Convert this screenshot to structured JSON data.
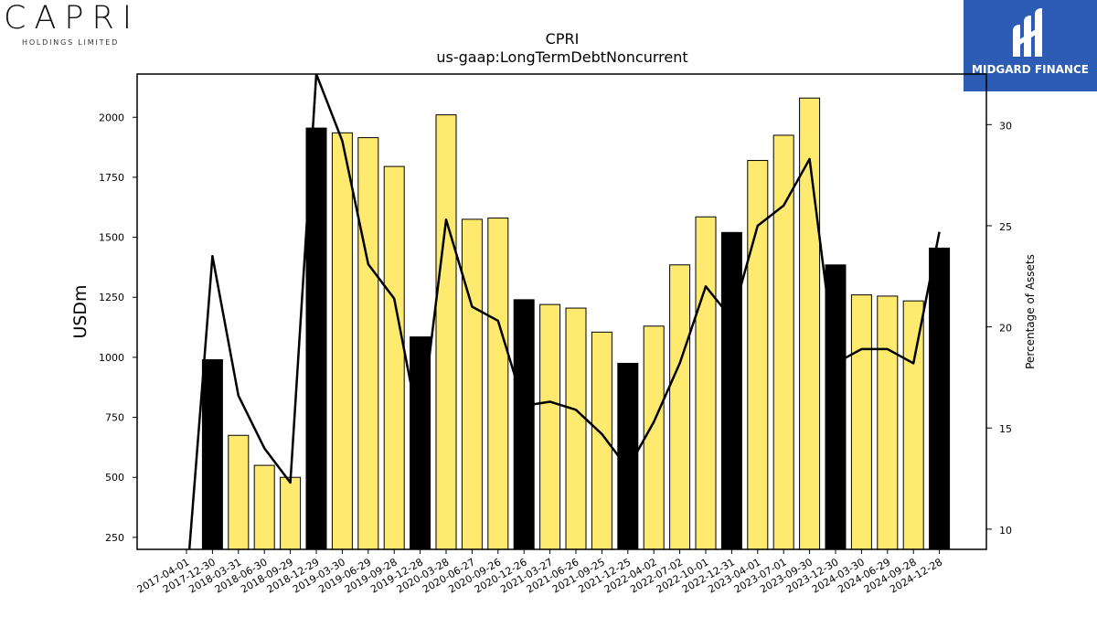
{
  "logos": {
    "left_word": "CAPRI",
    "left_sub": "HOLDINGS LIMITED",
    "right_text": "MIDGARD FINANCE",
    "right_color": "#2c5cb3"
  },
  "chart_data": {
    "type": "bar",
    "title": "CPRI",
    "subtitle": "us-gaap:LongTermDebtNoncurrent",
    "ylabel": "USDm",
    "ylabel_right": "Percentage of Assets",
    "ylim": [
      200,
      2180
    ],
    "ylim_right": [
      9,
      32.5
    ],
    "yticks": [
      250,
      500,
      750,
      1000,
      1250,
      1500,
      1750,
      2000
    ],
    "yticks_right": [
      10,
      15,
      20,
      25,
      30
    ],
    "bar_colors": {
      "quarter": "#fdea6f",
      "fiscal_year_end": "#000000"
    },
    "categories": [
      "2017-04-01",
      "2017-12-30",
      "2018-03-31",
      "2018-06-30",
      "2018-09-29",
      "2018-12-29",
      "2019-03-30",
      "2019-06-29",
      "2019-09-28",
      "2019-12-28",
      "2020-03-28",
      "2020-06-27",
      "2020-09-26",
      "2020-12-26",
      "2021-03-27",
      "2021-06-26",
      "2021-09-25",
      "2021-12-25",
      "2022-04-02",
      "2022-07-02",
      "2022-10-01",
      "2022-12-31",
      "2023-04-01",
      "2023-07-01",
      "2023-09-30",
      "2023-12-30",
      "2024-03-30",
      "2024-06-29",
      "2024-09-28",
      "2024-12-28"
    ],
    "series": [
      {
        "kind": "bar",
        "values": [
          null,
          990,
          675,
          550,
          500,
          1955,
          1935,
          1915,
          1795,
          1085,
          2010,
          1575,
          1580,
          1240,
          1220,
          1205,
          1105,
          975,
          1130,
          1385,
          1585,
          1520,
          1820,
          1925,
          2080,
          1385,
          1260,
          1255,
          1235,
          1455
        ],
        "fiscal_year_end": [
          false,
          true,
          false,
          false,
          false,
          true,
          false,
          false,
          false,
          true,
          false,
          false,
          false,
          true,
          false,
          false,
          false,
          true,
          false,
          false,
          false,
          true,
          false,
          false,
          false,
          true,
          false,
          false,
          false,
          true
        ]
      },
      {
        "kind": "line",
        "axis": "right",
        "values": [
          null,
          23.5,
          16.6,
          14.0,
          12.3,
          32.5,
          29.2,
          23.1,
          21.4,
          14.8,
          25.3,
          21.0,
          20.3,
          16.1,
          16.3,
          15.9,
          14.7,
          13.0,
          15.3,
          18.2,
          22.0,
          20.4,
          25.0,
          26.0,
          28.3,
          18.2,
          18.9,
          18.9,
          18.2,
          24.7
        ]
      }
    ]
  }
}
